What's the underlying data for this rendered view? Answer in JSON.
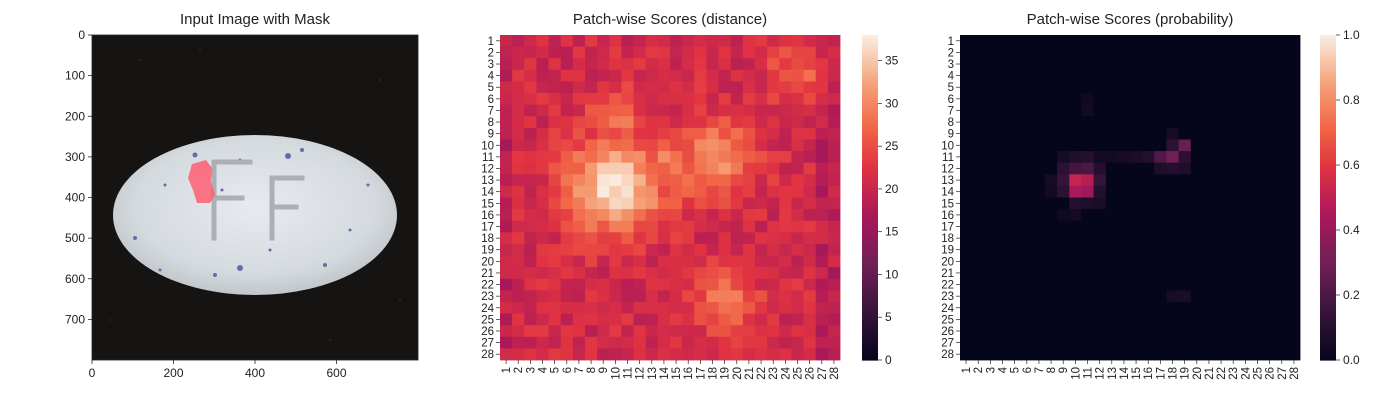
{
  "panels": {
    "image": {
      "title": "Input Image with Mask",
      "xticks": [
        "0",
        "200",
        "400",
        "600"
      ],
      "yticks": [
        "0",
        "100",
        "200",
        "300",
        "400",
        "500",
        "600",
        "700"
      ]
    },
    "distance": {
      "title": "Patch-wise Scores (distance)",
      "colorbar_ticks": [
        "0",
        "5",
        "10",
        "15",
        "20",
        "25",
        "30",
        "35"
      ]
    },
    "probability": {
      "title": "Patch-wise Scores (probability)",
      "colorbar_ticks": [
        "0.0",
        "0.2",
        "0.4",
        "0.6",
        "0.8",
        "1.0"
      ]
    }
  },
  "chart_data": [
    {
      "type": "image",
      "title": "Input Image with Mask",
      "xlim": [
        0,
        800
      ],
      "ylim": [
        800,
        0
      ],
      "xticks": [
        0,
        200,
        400,
        600
      ],
      "yticks": [
        0,
        100,
        200,
        300,
        400,
        500,
        600,
        700
      ],
      "annotations": [
        "FF",
        "mask"
      ]
    },
    {
      "type": "heatmap",
      "title": "Patch-wise Scores (distance)",
      "x_categories": [
        "1",
        "2",
        "3",
        "4",
        "5",
        "6",
        "7",
        "8",
        "9",
        "10",
        "11",
        "12",
        "13",
        "14",
        "15",
        "16",
        "17",
        "18",
        "19",
        "20",
        "21",
        "22",
        "23",
        "24",
        "25",
        "26",
        "27",
        "28"
      ],
      "y_categories": [
        "1",
        "2",
        "3",
        "4",
        "5",
        "6",
        "7",
        "8",
        "9",
        "10",
        "11",
        "12",
        "13",
        "14",
        "15",
        "16",
        "17",
        "18",
        "19",
        "20",
        "21",
        "22",
        "23",
        "24",
        "25",
        "26",
        "27",
        "28"
      ],
      "vmin": 0,
      "vmax": 38,
      "colormap": "rocket",
      "colorbar_ticks": [
        0,
        5,
        10,
        15,
        20,
        25,
        30,
        35
      ],
      "hotspots": [
        {
          "row": 13.5,
          "col": 10,
          "value": 37,
          "spread": 2.8
        },
        {
          "row": 11,
          "col": 18.5,
          "value": 31,
          "spread": 2.2
        },
        {
          "row": 12,
          "col": 14,
          "value": 29,
          "spread": 2.5
        },
        {
          "row": 8,
          "col": 10,
          "value": 28,
          "spread": 1.8
        },
        {
          "row": 23.5,
          "col": 19,
          "value": 28,
          "spread": 2
        },
        {
          "row": 4,
          "col": 25,
          "value": 27,
          "spread": 1.8
        }
      ],
      "base_value": 21
    },
    {
      "type": "heatmap",
      "title": "Patch-wise Scores (probability)",
      "x_categories": [
        "1",
        "2",
        "3",
        "4",
        "5",
        "6",
        "7",
        "8",
        "9",
        "10",
        "11",
        "12",
        "13",
        "14",
        "15",
        "16",
        "17",
        "18",
        "19",
        "20",
        "21",
        "22",
        "23",
        "24",
        "25",
        "26",
        "27",
        "28"
      ],
      "y_categories": [
        "1",
        "2",
        "3",
        "4",
        "5",
        "6",
        "7",
        "8",
        "9",
        "10",
        "11",
        "12",
        "13",
        "14",
        "15",
        "16",
        "17",
        "18",
        "19",
        "20",
        "21",
        "22",
        "23",
        "24",
        "25",
        "26",
        "27",
        "28"
      ],
      "vmin": 0,
      "vmax": 1,
      "colormap": "rocket",
      "colorbar_ticks": [
        0.0,
        0.2,
        0.4,
        0.6,
        0.8,
        1.0
      ],
      "cells": [
        {
          "row": 13,
          "col": 10,
          "value": 0.52
        },
        {
          "row": 13,
          "col": 11,
          "value": 0.48
        },
        {
          "row": 14,
          "col": 10,
          "value": 0.45
        },
        {
          "row": 14,
          "col": 11,
          "value": 0.42
        },
        {
          "row": 12,
          "col": 9,
          "value": 0.12
        },
        {
          "row": 12,
          "col": 10,
          "value": 0.18
        },
        {
          "row": 12,
          "col": 11,
          "value": 0.2
        },
        {
          "row": 12,
          "col": 12,
          "value": 0.1
        },
        {
          "row": 13,
          "col": 9,
          "value": 0.15
        },
        {
          "row": 14,
          "col": 9,
          "value": 0.12
        },
        {
          "row": 13,
          "col": 12,
          "value": 0.15
        },
        {
          "row": 14,
          "col": 12,
          "value": 0.1
        },
        {
          "row": 15,
          "col": 10,
          "value": 0.1
        },
        {
          "row": 15,
          "col": 11,
          "value": 0.08
        },
        {
          "row": 15,
          "col": 12,
          "value": 0.07
        },
        {
          "row": 13,
          "col": 8,
          "value": 0.06
        },
        {
          "row": 14,
          "col": 8,
          "value": 0.05
        },
        {
          "row": 11,
          "col": 9,
          "value": 0.06
        },
        {
          "row": 11,
          "col": 10,
          "value": 0.09
        },
        {
          "row": 11,
          "col": 11,
          "value": 0.1
        },
        {
          "row": 11,
          "col": 12,
          "value": 0.05
        },
        {
          "row": 11,
          "col": 17,
          "value": 0.22
        },
        {
          "row": 11,
          "col": 18,
          "value": 0.3
        },
        {
          "row": 10,
          "col": 19,
          "value": 0.28
        },
        {
          "row": 10,
          "col": 18,
          "value": 0.12
        },
        {
          "row": 11,
          "col": 19,
          "value": 0.12
        },
        {
          "row": 12,
          "col": 18,
          "value": 0.1
        },
        {
          "row": 12,
          "col": 19,
          "value": 0.08
        },
        {
          "row": 12,
          "col": 17,
          "value": 0.08
        },
        {
          "row": 9,
          "col": 18,
          "value": 0.06
        },
        {
          "row": 11,
          "col": 14,
          "value": 0.06
        },
        {
          "row": 11,
          "col": 15,
          "value": 0.07
        },
        {
          "row": 11,
          "col": 16,
          "value": 0.1
        },
        {
          "row": 11,
          "col": 13,
          "value": 0.05
        },
        {
          "row": 7,
          "col": 11,
          "value": 0.05
        },
        {
          "row": 6,
          "col": 11,
          "value": 0.04
        },
        {
          "row": 23,
          "col": 18,
          "value": 0.06
        },
        {
          "row": 23,
          "col": 19,
          "value": 0.07
        },
        {
          "row": 16,
          "col": 10,
          "value": 0.05
        },
        {
          "row": 16,
          "col": 9,
          "value": 0.04
        }
      ],
      "base_value": 0.005
    }
  ]
}
